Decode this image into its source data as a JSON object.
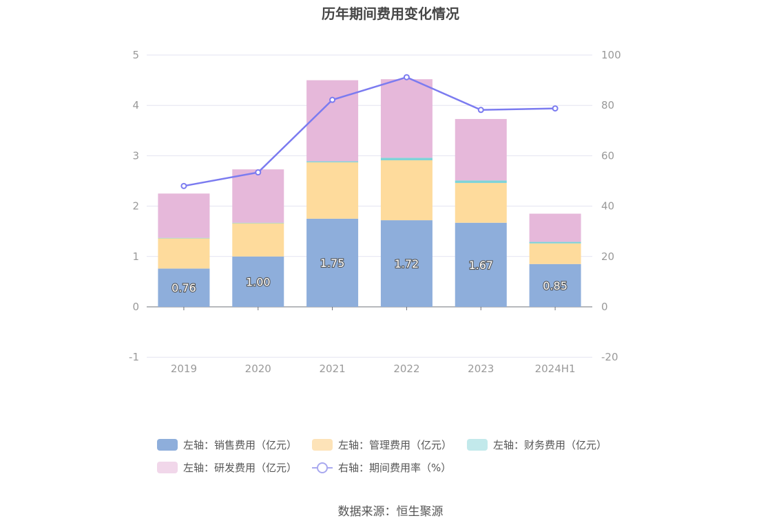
{
  "title": "历年期间费用变化情况",
  "source": "数据来源：恒生聚源",
  "colors": {
    "sales": "#8eaedb",
    "admin": "#fedb9c",
    "finance": "#7fd3d7",
    "rnd": "#e6b8da",
    "ratio": "#7b7bf0",
    "grid": "#e3e3f0",
    "axis_text": "#999999",
    "label_text": "#ffffff"
  },
  "legend": {
    "items": [
      {
        "key": "sales",
        "label": "左轴：销售费用（亿元）",
        "color": "#8eaedb"
      },
      {
        "key": "admin",
        "label": "左轴：管理费用（亿元）",
        "color": "#fde3b8"
      },
      {
        "key": "finance",
        "label": "左轴：财务费用（亿元）",
        "color": "#c2e9eb"
      },
      {
        "key": "rnd",
        "label": "左轴：研发费用（亿元）",
        "color": "#f1d7ea"
      },
      {
        "key": "ratio",
        "label": "右轴：期间费用率（%）",
        "color": "#a8a8ef"
      }
    ]
  },
  "chart_data": {
    "type": "bar",
    "stacked": true,
    "categories": [
      "2019",
      "2020",
      "2021",
      "2022",
      "2023",
      "2024H1"
    ],
    "series": [
      {
        "name": "左轴：销售费用（亿元）",
        "axis": "left",
        "values": [
          0.76,
          1.0,
          1.75,
          1.72,
          1.67,
          0.85
        ],
        "data_labels": [
          "0.76",
          "1.00",
          "1.75",
          "1.72",
          "1.67",
          "0.85"
        ]
      },
      {
        "name": "左轴：管理费用（亿元）",
        "axis": "left",
        "values": [
          0.6,
          0.66,
          1.12,
          1.19,
          0.79,
          0.41
        ]
      },
      {
        "name": "左轴：财务费用（亿元）",
        "axis": "left",
        "values": [
          0.01,
          0.01,
          0.02,
          0.05,
          0.05,
          0.03
        ]
      },
      {
        "name": "左轴：研发费用（亿元）",
        "axis": "left",
        "values": [
          0.88,
          1.06,
          1.61,
          1.56,
          1.22,
          0.56
        ]
      },
      {
        "name": "右轴：期间费用率（%）",
        "axis": "right",
        "type": "line",
        "values": [
          48.0,
          53.4,
          82.2,
          91.2,
          78.2,
          78.8
        ]
      }
    ],
    "y_left": {
      "min": -1,
      "max": 5,
      "ticks": [
        "-1",
        "0",
        "1",
        "2",
        "3",
        "4",
        "5"
      ]
    },
    "y_right": {
      "min": -20,
      "max": 100,
      "ticks": [
        "-20",
        "0",
        "20",
        "40",
        "60",
        "80",
        "100"
      ]
    },
    "grid": true,
    "legend_position": "bottom"
  }
}
